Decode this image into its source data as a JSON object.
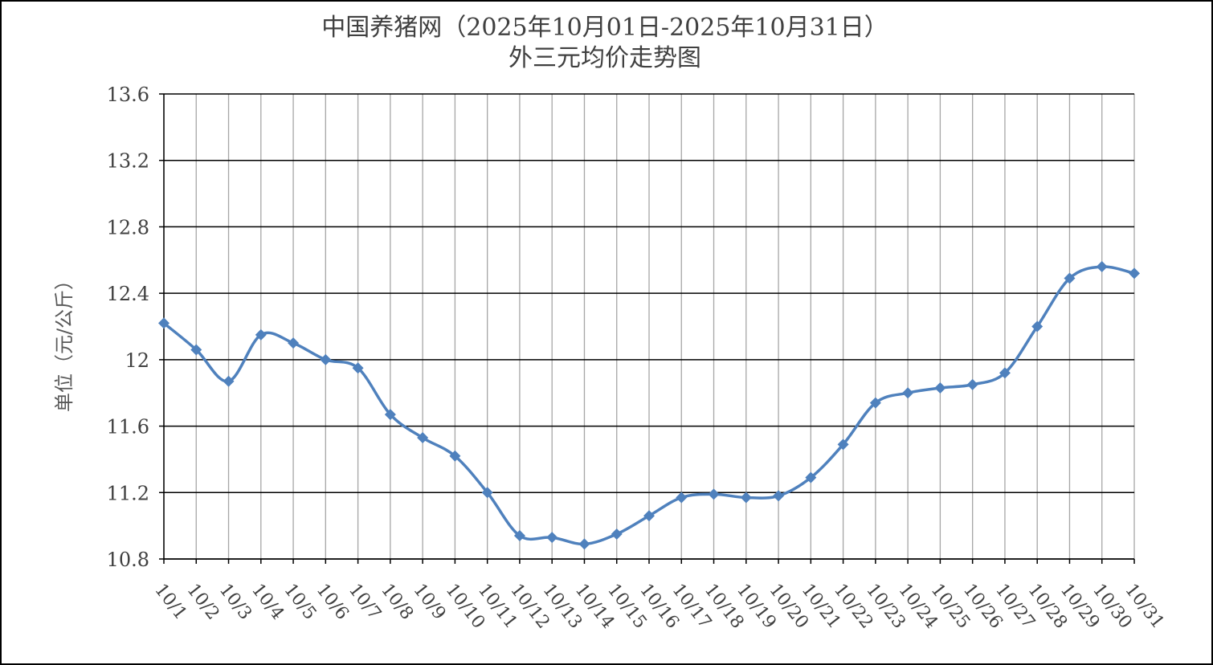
{
  "chart_data": {
    "type": "line",
    "title": "中国养猪网（2025年10月01日-2025年10月31日）",
    "subtitle": "外三元均价走势图",
    "ylabel": "单位（元/公斤）",
    "xlabel": "",
    "ylim": [
      10.8,
      13.6
    ],
    "yticks": [
      "13.6",
      "13.2",
      "12.8",
      "12.4",
      "12",
      "11.6",
      "11.2",
      "10.8"
    ],
    "categories": [
      "10/1",
      "10/2",
      "10/3",
      "10/4",
      "10/5",
      "10/6",
      "10/7",
      "10/8",
      "10/9",
      "10/10",
      "10/11",
      "10/12",
      "10/13",
      "10/14",
      "10/15",
      "10/16",
      "10/17",
      "10/18",
      "10/19",
      "10/20",
      "10/21",
      "10/22",
      "10/23",
      "10/24",
      "10/25",
      "10/26",
      "10/27",
      "10/28",
      "10/29",
      "10/30",
      "10/31"
    ],
    "series": [
      {
        "values": [
          12.22,
          12.06,
          11.87,
          12.15,
          12.1,
          12.0,
          11.95,
          11.67,
          11.53,
          11.42,
          11.2,
          10.94,
          10.93,
          10.89,
          10.95,
          11.06,
          11.17,
          11.19,
          11.17,
          11.18,
          11.29,
          11.49,
          11.74,
          11.8,
          11.83,
          11.85,
          11.92,
          12.2,
          12.49,
          12.56,
          12.52
        ],
        "color": "#4f81bd",
        "marker": "diamond"
      }
    ],
    "grid": "on",
    "legend": "none"
  }
}
